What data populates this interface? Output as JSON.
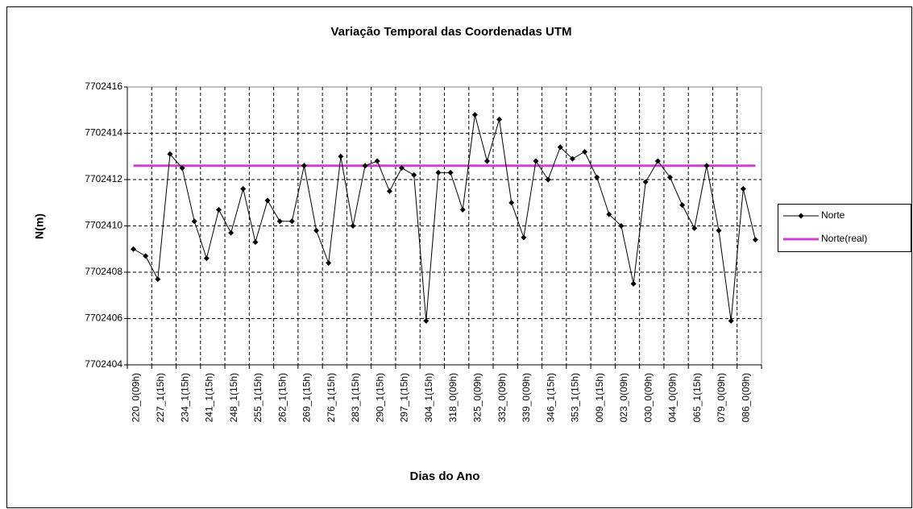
{
  "chart_data": {
    "type": "line",
    "title": "Variação Temporal das Coordenadas UTM",
    "x_label": "Dias do Ano",
    "y_label": "N(m)",
    "categories": [
      "220_0(09h)",
      null,
      "227_1(15h)",
      null,
      "234_1(15h)",
      null,
      "241_1(15h)",
      null,
      "248_1(15h)",
      null,
      "255_1(15h)",
      null,
      "262_1(15h)",
      null,
      "269_1(15h)",
      null,
      "276_1(15h)",
      null,
      "283_1(15h)",
      null,
      "290_1(15h)",
      null,
      "297_1(15h)",
      null,
      "304_1(15h)",
      null,
      "318_0(09h)",
      null,
      "325_0(09h)",
      null,
      "332_0(09h)",
      null,
      "339_0(09h)",
      null,
      "346_1(15h)",
      null,
      "353_1(15h)",
      null,
      "009_1(15h)",
      null,
      "023_0(09h)",
      null,
      "030_0(09h)",
      null,
      "044_0(09h)",
      null,
      "065_1(15h)",
      null,
      "079_0(09h)",
      null,
      "086_0(09h)",
      null
    ],
    "series": [
      {
        "name": "Norte",
        "color": "#000000",
        "marker": "diamond",
        "values": [
          7702409.0,
          7702408.7,
          7702407.7,
          7702413.1,
          7702412.5,
          7702410.2,
          7702408.6,
          7702410.7,
          7702409.7,
          7702411.6,
          7702409.3,
          7702411.1,
          7702410.2,
          7702410.2,
          7702412.6,
          7702409.8,
          7702408.4,
          7702413.0,
          7702410.0,
          7702412.6,
          7702412.8,
          7702411.5,
          7702412.5,
          7702412.2,
          7702405.9,
          7702412.3,
          7702412.3,
          7702410.7,
          7702414.8,
          7702412.8,
          7702414.6,
          7702411.0,
          7702409.5,
          7702412.8,
          7702412.0,
          7702413.4,
          7702412.9,
          7702413.2,
          7702412.1,
          7702410.5,
          7702410.0,
          7702407.5,
          7702411.9,
          7702412.8,
          7702412.1,
          7702410.9,
          7702409.9,
          7702412.6,
          7702409.8,
          7702405.9,
          7702411.6,
          7702409.4
        ]
      },
      {
        "name": "Norte(real)",
        "color": "#d040d0",
        "marker": "none",
        "values": [
          7702412.6,
          7702412.6,
          7702412.6,
          7702412.6,
          7702412.6,
          7702412.6,
          7702412.6,
          7702412.6,
          7702412.6,
          7702412.6,
          7702412.6,
          7702412.6,
          7702412.6,
          7702412.6,
          7702412.6,
          7702412.6,
          7702412.6,
          7702412.6,
          7702412.6,
          7702412.6,
          7702412.6,
          7702412.6,
          7702412.6,
          7702412.6,
          7702412.6,
          7702412.6,
          7702412.6,
          7702412.6,
          7702412.6,
          7702412.6,
          7702412.6,
          7702412.6,
          7702412.6,
          7702412.6,
          7702412.6,
          7702412.6,
          7702412.6,
          7702412.6,
          7702412.6,
          7702412.6,
          7702412.6,
          7702412.6,
          7702412.6,
          7702412.6,
          7702412.6,
          7702412.6,
          7702412.6,
          7702412.6,
          7702412.6,
          7702412.6,
          7702412.6,
          7702412.6
        ]
      }
    ],
    "ylim": [
      7702404,
      7702416
    ],
    "yticks": [
      7702404,
      7702406,
      7702408,
      7702410,
      7702412,
      7702414,
      7702416
    ],
    "grid": true,
    "legend": "right"
  }
}
